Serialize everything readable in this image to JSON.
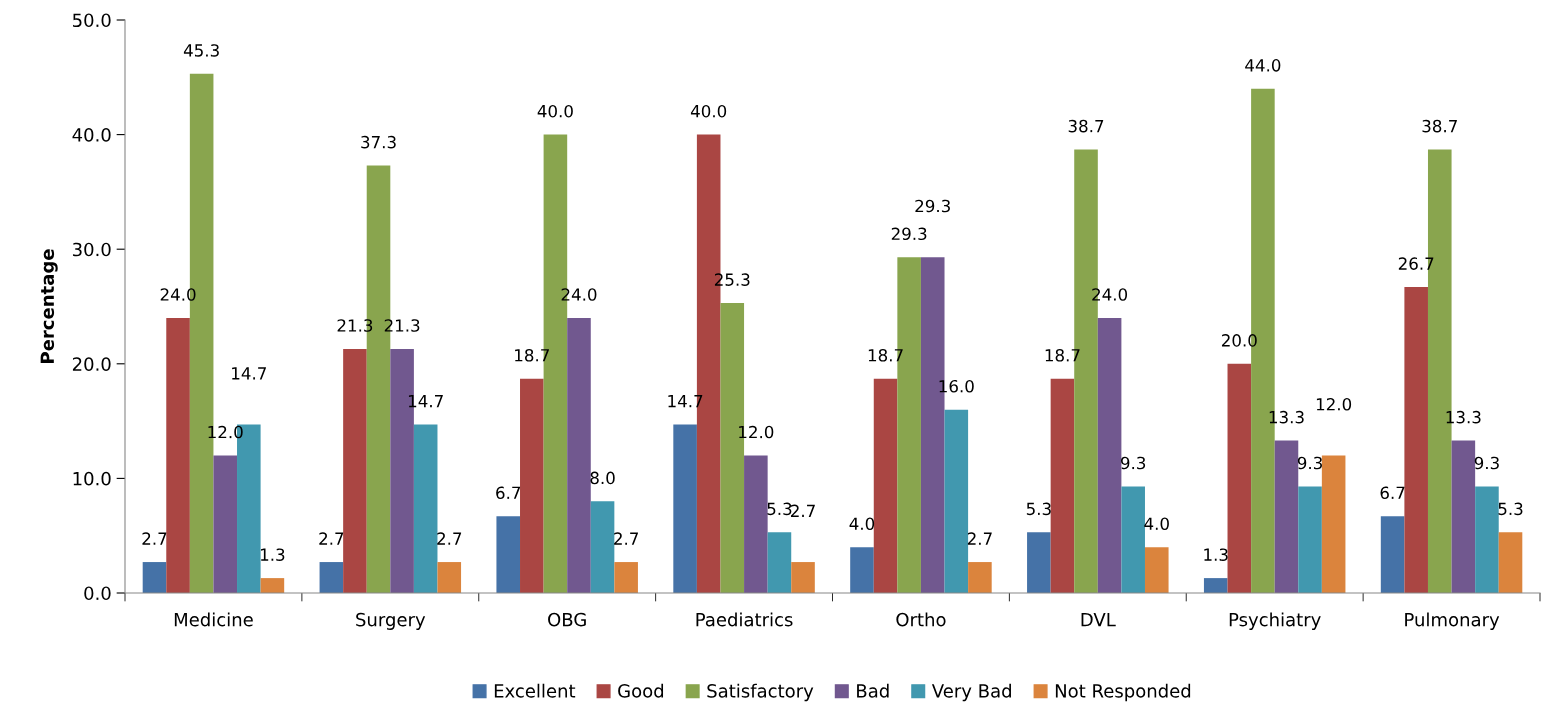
{
  "chart_data": {
    "type": "bar",
    "ylabel": "Percentage",
    "categories": [
      "Medicine",
      "Surgery",
      "OBG",
      "Paediatrics",
      "Ortho",
      "DVL",
      "Psychiatry",
      "Pulmonary"
    ],
    "series": [
      {
        "name": "Excellent",
        "color": "#4572a7",
        "values": [
          2.7,
          2.7,
          6.7,
          14.7,
          4.0,
          5.3,
          1.3,
          6.7
        ],
        "value_labels": [
          "2.7",
          "2.7",
          "6.7",
          "14.7",
          "4.0",
          "5.3",
          "1.3",
          "6.7"
        ]
      },
      {
        "name": "Good",
        "color": "#aa4643",
        "values": [
          24.0,
          21.3,
          18.7,
          40.0,
          18.7,
          18.7,
          20.0,
          26.7
        ],
        "value_labels": [
          "24.0",
          "21.3",
          "18.7",
          "40.0",
          "18.7",
          "18.7",
          "20.0",
          "26.7"
        ]
      },
      {
        "name": "Satisfactory",
        "color": "#89a54e",
        "values": [
          45.3,
          37.3,
          40.0,
          25.3,
          29.3,
          38.7,
          44.0,
          38.7
        ],
        "value_labels": [
          "45.3",
          "37.3",
          "40.0",
          "25.3",
          "29.3",
          "38.7",
          "44.0",
          "38.7"
        ]
      },
      {
        "name": "Bad",
        "color": "#71588f",
        "values": [
          12.0,
          21.3,
          24.0,
          12.0,
          29.3,
          24.0,
          13.3,
          13.3
        ],
        "value_labels": [
          "12.0",
          "21.3",
          "24.0",
          "12.0",
          "29.3",
          "24.0",
          "13.3",
          "13.3"
        ]
      },
      {
        "name": "Very Bad",
        "color": "#4198af",
        "values": [
          14.7,
          14.7,
          8.0,
          5.3,
          16.0,
          9.3,
          9.3,
          9.3
        ],
        "value_labels": [
          "14.7",
          "14.7",
          "8.0",
          "5.3",
          "16.0",
          "9.3",
          "9.3",
          "9.3"
        ]
      },
      {
        "name": "Not Responded",
        "color": "#db843d",
        "values": [
          1.3,
          2.7,
          2.7,
          2.7,
          2.7,
          4.0,
          12.0,
          5.3
        ],
        "value_labels": [
          "1.3",
          "2.7",
          "2.7",
          "2.7",
          "2.7",
          "4.0",
          "12.0",
          "5.3"
        ]
      }
    ],
    "ylim": [
      0,
      50
    ],
    "yticks": [
      {
        "value": 0,
        "label": "0.0"
      },
      {
        "value": 10,
        "label": "10.0"
      },
      {
        "value": 20,
        "label": "20.0"
      },
      {
        "value": 30,
        "label": "30.0"
      },
      {
        "value": 40,
        "label": "40.0"
      },
      {
        "value": 50,
        "label": "50.0"
      }
    ],
    "grid": false,
    "legend": "bottom"
  }
}
